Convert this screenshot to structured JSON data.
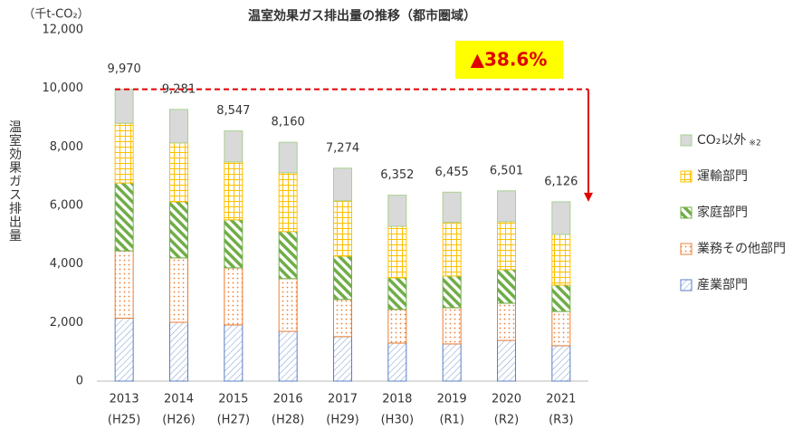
{
  "chart_data": {
    "type": "stacked-bar",
    "title": "温室効果ガス排出量の推移（都市圏域）",
    "unit_label": "（千t-CO₂）",
    "y_label": "温室効果ガス排出量",
    "categories": [
      "2013",
      "2014",
      "2015",
      "2016",
      "2017",
      "2018",
      "2019",
      "2020",
      "2021"
    ],
    "category_sublabels": [
      "(H25)",
      "(H26)",
      "(H27)",
      "(H28)",
      "(H29)",
      "(H30)",
      "(R1)",
      "(R2)",
      "(R3)"
    ],
    "series": [
      {
        "name": "産業部門",
        "color": "#5b7fc4",
        "values": [
          2150,
          2010,
          1920,
          1700,
          1520,
          1300,
          1270,
          1390,
          1210
        ]
      },
      {
        "name": "業務その他部門",
        "color": "#ed7d31",
        "values": [
          2300,
          2200,
          1950,
          1800,
          1270,
          1150,
          1240,
          1270,
          1170
        ]
      },
      {
        "name": "家庭部門",
        "color": "#70ad47",
        "values": [
          2320,
          1920,
          1640,
          1610,
          1480,
          1080,
          1080,
          1150,
          900
        ]
      },
      {
        "name": "運輸部門",
        "color": "#ffc000",
        "values": [
          2040,
          2010,
          1980,
          2010,
          1890,
          1760,
          1830,
          1640,
          1730
        ]
      },
      {
        "name": "CO₂以外",
        "name_note": "※2",
        "color": "#a9d18e",
        "values": [
          1160,
          1141,
          1057,
          1040,
          1114,
          1062,
          1035,
          1051,
          1116
        ]
      }
    ],
    "totals": {
      "values": [
        9970,
        9281,
        8547,
        8160,
        7274,
        6352,
        6455,
        6501,
        6126
      ],
      "value_labels": [
        "9,970",
        "9,281",
        "8,547",
        "8,160",
        "7,274",
        "6,352",
        "6,455",
        "6,501",
        "6,126"
      ]
    },
    "annotation": "▲38.6%",
    "ylim": [
      0,
      12000
    ],
    "yticks": [
      0,
      {
        "value": 2000,
        "label": "2,000"
      },
      {
        "value": 4000,
        "label": "4,000"
      },
      {
        "value": 6000,
        "label": "6,000"
      },
      {
        "value": 8000,
        "label": "8,000"
      },
      {
        "value": 10000,
        "label": "10,000"
      },
      {
        "value": 12000,
        "label": "12,000"
      }
    ],
    "legend": "right"
  }
}
